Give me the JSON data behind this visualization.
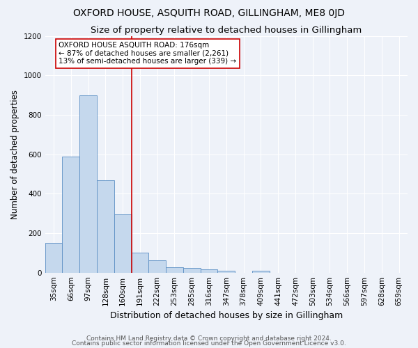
{
  "title": "OXFORD HOUSE, ASQUITH ROAD, GILLINGHAM, ME8 0JD",
  "subtitle": "Size of property relative to detached houses in Gillingham",
  "xlabel": "Distribution of detached houses by size in Gillingham",
  "ylabel": "Number of detached properties",
  "categories": [
    "35sqm",
    "66sqm",
    "97sqm",
    "128sqm",
    "160sqm",
    "191sqm",
    "222sqm",
    "253sqm",
    "285sqm",
    "316sqm",
    "347sqm",
    "378sqm",
    "409sqm",
    "441sqm",
    "472sqm",
    "503sqm",
    "534sqm",
    "566sqm",
    "597sqm",
    "628sqm",
    "659sqm"
  ],
  "values": [
    150,
    590,
    900,
    470,
    295,
    100,
    63,
    28,
    25,
    15,
    10,
    0,
    10,
    0,
    0,
    0,
    0,
    0,
    0,
    0,
    0
  ],
  "bar_color": "#c5d8ed",
  "bar_edge_color": "#5b8ec4",
  "vline_color": "#cc0000",
  "vline_pos": 4.5,
  "annotation_text": "OXFORD HOUSE ASQUITH ROAD: 176sqm\n← 87% of detached houses are smaller (2,261)\n13% of semi-detached houses are larger (339) →",
  "annotation_box_color": "#ffffff",
  "annotation_box_edge_color": "#cc0000",
  "ylim": [
    0,
    1200
  ],
  "yticks": [
    0,
    200,
    400,
    600,
    800,
    1000,
    1200
  ],
  "footnote1": "Contains HM Land Registry data © Crown copyright and database right 2024.",
  "footnote2": "Contains public sector information licensed under the Open Government Licence v3.0.",
  "background_color": "#eef2f9",
  "plot_background_color": "#eef2f9",
  "title_fontsize": 10,
  "subtitle_fontsize": 9.5,
  "xlabel_fontsize": 9,
  "ylabel_fontsize": 8.5,
  "tick_fontsize": 7.5,
  "annotation_fontsize": 7.5,
  "footnote_fontsize": 6.5
}
